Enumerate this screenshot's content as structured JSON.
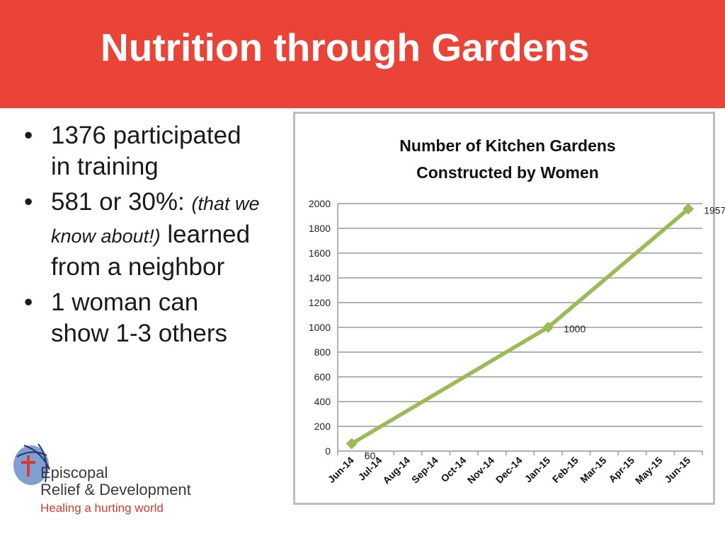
{
  "slide": {
    "title": "Nutrition through Gardens",
    "accent_color": "#ea4338"
  },
  "bullets": [
    {
      "marker": "•",
      "lines": [
        "1376 participated",
        "in training"
      ]
    },
    {
      "marker": "•",
      "text_before": "581 or 30%: ",
      "italic": "(that we know about!)",
      "text_after": "learned from a neighbor"
    },
    {
      "marker": "•",
      "lines": [
        "1 woman can",
        "show 1-3 others"
      ]
    }
  ],
  "logo": {
    "name_line1": "Episcopal",
    "name_line2": "Relief & Development",
    "tagline": "Healing a hurting world",
    "icon": "globe-cross-icon"
  },
  "chart_data": {
    "type": "line",
    "title": "Number of Kitchen Gardens Constructed by Women",
    "title_lines": [
      "Number of Kitchen Gardens",
      "Constructed by Women"
    ],
    "categories": [
      "Jun-14",
      "Jul-14",
      "Aug-14",
      "Sep-14",
      "Oct-14",
      "Nov-14",
      "Dec-14",
      "Jan-15",
      "Feb-15",
      "Mar-15",
      "Apr-15",
      "May-15",
      "Jun-15"
    ],
    "series": [
      {
        "color": "#9bbb59",
        "points": [
          {
            "category": "Jun-14",
            "value": 60,
            "label": "60"
          },
          {
            "category": "Jan-15",
            "value": 1000,
            "label": "1000"
          },
          {
            "category": "Jun-15",
            "value": 1957,
            "label": "1957"
          }
        ]
      }
    ],
    "yticks": [
      0,
      200,
      400,
      600,
      800,
      1000,
      1200,
      1400,
      1600,
      1800,
      2000
    ],
    "ylim": [
      0,
      2000
    ],
    "grid": true,
    "legend": "none"
  }
}
